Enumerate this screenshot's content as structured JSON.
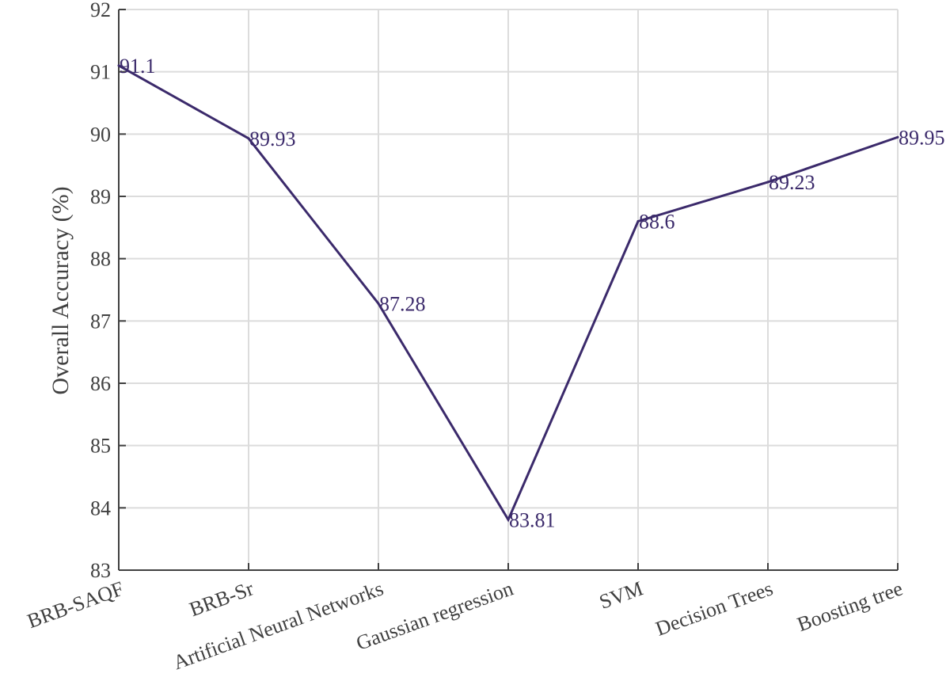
{
  "chart_data": {
    "type": "line",
    "categories": [
      "BRB-SAQF",
      "BRB-Sr",
      "Artificial Neural Networks",
      "Gaussian regression",
      "SVM",
      "Decision Trees",
      "Boosting tree"
    ],
    "series": [
      {
        "values": [
          91.1,
          89.93,
          87.28,
          83.81,
          88.6,
          89.23,
          89.95
        ]
      }
    ],
    "data_labels": [
      "91.1",
      "89.93",
      "87.28",
      "83.81",
      "88.6",
      "89.23",
      "89.95"
    ],
    "xlabel": "",
    "ylabel": "Overall Accuracy (%)",
    "ylim": [
      83,
      92
    ],
    "yticks": [
      83,
      84,
      85,
      86,
      87,
      88,
      89,
      90,
      91,
      92
    ],
    "grid": true,
    "line_color": "#3b2a6b",
    "grid_color": "#dcdcdc",
    "axis_color": "#404040"
  }
}
